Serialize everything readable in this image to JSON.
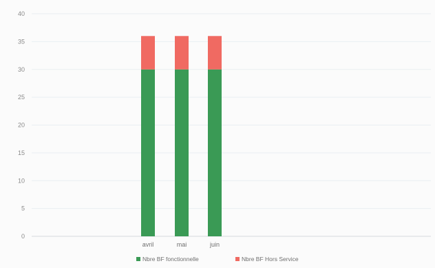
{
  "chart_data": {
    "type": "bar",
    "stacked": true,
    "categories": [
      "avril",
      "mai",
      "juin"
    ],
    "series": [
      {
        "name": "Nbre BF fonctionnelle",
        "values": [
          30,
          30,
          30
        ],
        "color": "#3a9a55"
      },
      {
        "name": "Nbre BF Hors Service",
        "values": [
          6,
          6,
          6
        ],
        "color": "#f06a62"
      }
    ],
    "title": "",
    "xlabel": "",
    "ylabel": "",
    "ylim": [
      0,
      40
    ],
    "yticks": [
      0,
      5,
      10,
      15,
      20,
      25,
      30,
      35,
      40
    ],
    "grid": true,
    "legend_position": "bottom"
  }
}
